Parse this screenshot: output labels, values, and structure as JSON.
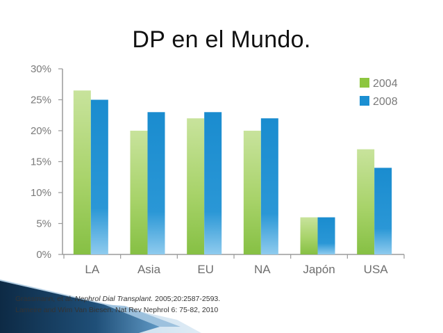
{
  "slide": {
    "title": "DP en el Mundo."
  },
  "citations": [
    {
      "before": "Grassmann, et al. ",
      "journal": "Nephrol Dial Transplant.",
      "after": " 2005;20:2587-2593."
    },
    {
      "before": "Lameire and Wim Van Biesen. Nat Rev Nephrol 6: 75-82, 2010",
      "journal": "",
      "after": ""
    }
  ],
  "colors": {
    "series_2004": "#8dc63f",
    "series_2004_light": "#c5e39a",
    "series_2008": "#1b8fd2",
    "series_2008_light": "#8fcbee",
    "axis": "#9a9a9a",
    "ribbon_dark": "#0d2a45",
    "ribbon_mid": "#2f6e9e",
    "ribbon_light": "#7fb0d6"
  },
  "chart_data": {
    "type": "bar",
    "categories": [
      "LA",
      "Asia",
      "EU",
      "NA",
      "Japón",
      "USA"
    ],
    "series": [
      {
        "name": "2004",
        "values": [
          26.5,
          20,
          22,
          20,
          6,
          17
        ]
      },
      {
        "name": "2008",
        "values": [
          25,
          23,
          23,
          22,
          6,
          14
        ]
      }
    ],
    "y_ticks": [
      "0%",
      "5%",
      "10%",
      "15%",
      "20%",
      "25%",
      "30%"
    ],
    "ylim": [
      0,
      30
    ],
    "legend_position": "top-right",
    "grid": false
  }
}
